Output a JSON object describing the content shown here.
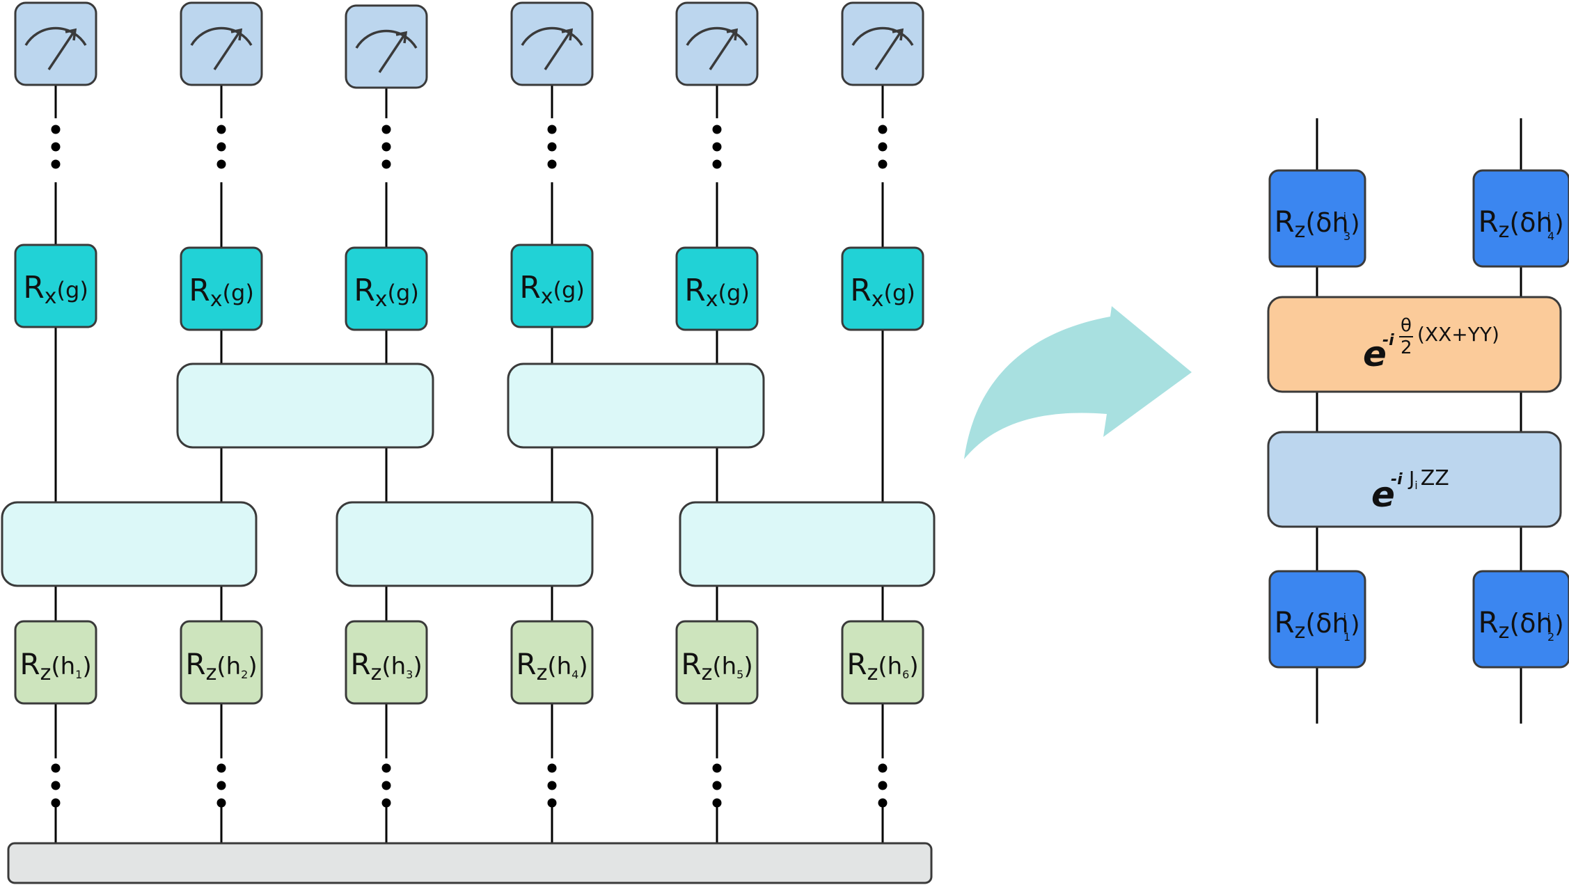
{
  "left_circuit": {
    "qubit_count": 6,
    "rx_gates": [
      {
        "base": "R",
        "sub": "x",
        "arg": "(g)"
      },
      {
        "base": "R",
        "sub": "x",
        "arg": "(g)"
      },
      {
        "base": "R",
        "sub": "x",
        "arg": "(g)"
      },
      {
        "base": "R",
        "sub": "x",
        "arg": "(g)"
      },
      {
        "base": "R",
        "sub": "x",
        "arg": "(g)"
      },
      {
        "base": "R",
        "sub": "x",
        "arg": "(g)"
      }
    ],
    "rz_gates": [
      {
        "base": "R",
        "sub": "z",
        "open": "(h",
        "idx": "1",
        "close": ")"
      },
      {
        "base": "R",
        "sub": "z",
        "open": "(h",
        "idx": "2",
        "close": ")"
      },
      {
        "base": "R",
        "sub": "z",
        "open": "(h",
        "idx": "3",
        "close": ")"
      },
      {
        "base": "R",
        "sub": "z",
        "open": "(h",
        "idx": "4",
        "close": ")"
      },
      {
        "base": "R",
        "sub": "z",
        "open": "(h",
        "idx": "5",
        "close": ")"
      },
      {
        "base": "R",
        "sub": "z",
        "open": "(h",
        "idx": "6",
        "close": ")"
      }
    ]
  },
  "right_decomposition": {
    "top_gates": [
      {
        "base": "R",
        "sub": "z",
        "open": "(δh",
        "sup": "i",
        "idx": "3",
        "close": ")"
      },
      {
        "base": "R",
        "sub": "z",
        "open": "(δh",
        "sup": "i",
        "idx": "4",
        "close": ")"
      }
    ],
    "bottom_gates": [
      {
        "base": "R",
        "sub": "z",
        "open": "(δh",
        "sup": "i",
        "idx": "1",
        "close": ")"
      },
      {
        "base": "R",
        "sub": "z",
        "open": "(δh",
        "sup": "i",
        "idx": "2",
        "close": ")"
      }
    ],
    "hopping_gate": {
      "e": "e",
      "exp_prefix": "-i",
      "frac_num": "θ",
      "frac_den": "2",
      "exp_suffix": "(XX+YY)"
    },
    "zz_gate": {
      "e": "e",
      "exp_prefix": "-i",
      "exp_J": "J",
      "exp_J_sub": "i",
      "exp_suffix": "ZZ"
    }
  },
  "colors": {
    "measure_fill": "#bcd6ee",
    "rx_fill": "#21d2d6",
    "two_qubit_fill": "#dcf8f8",
    "rz_fill": "#cde4bd",
    "base_fill": "#e2e4e4",
    "blue_gate_fill": "#3b86f0",
    "hopping_fill": "#fbcb9a",
    "zz_fill": "#bcd6ee",
    "arrow_fill": "#a8e0e0",
    "stroke": "#3a3a3a"
  },
  "icons": {
    "measurement": "meter-icon",
    "continuation": "vertical-ellipsis-icon",
    "transition": "curved-arrow-icon"
  }
}
